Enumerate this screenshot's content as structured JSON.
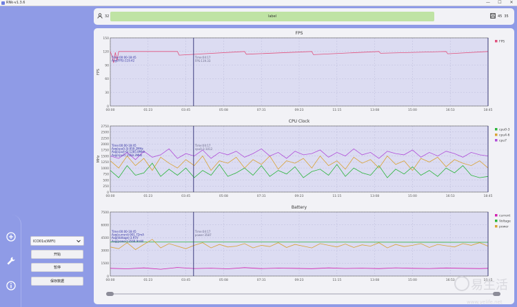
{
  "window": {
    "title": "RNk-v1.3.6",
    "minimize": "—",
    "maximize": "☐",
    "close": "✕"
  },
  "toolbar": {
    "device_count": "32",
    "status": "label",
    "right_a": "45",
    "right_b": "35"
  },
  "left_panel": {
    "device_select": "ICO01s(WIFI)",
    "buttons": {
      "start": "开始",
      "pause": "暂停",
      "save": "保存数据"
    }
  },
  "nav": {
    "icons": [
      "add-icon",
      "wrench-icon",
      "info-icon"
    ]
  },
  "colors": {
    "bg": "#8f9be6",
    "fps": "#e0507c",
    "cpu0": "#2bb53a",
    "cpu4": "#d9a233",
    "cpu7": "#b04dd9",
    "current": "#d11fb0",
    "voltage": "#2bb53a",
    "power": "#d9a233",
    "banner": "#bfe3a4"
  },
  "time_ticks": [
    "00:00",
    "01:23",
    "03:45",
    "05:08",
    "07:31",
    "09:23",
    "11:15",
    "13:08",
    "15:00",
    "16:53",
    "18:45"
  ],
  "watermark": "易生活",
  "watermark_url": "www.yelife.net",
  "chart_data": [
    {
      "type": "line",
      "title": "FPS",
      "ylabel": "FPS",
      "y_ticks": [
        "0",
        "30",
        "60",
        "90",
        "120",
        "150"
      ],
      "ylim": [
        0,
        150
      ],
      "xlim": [
        0,
        1125
      ],
      "x_tick_labels_ref": "time_ticks",
      "series": [
        {
          "name": "FPS",
          "color": "#e0507c",
          "x": [
            0,
            5,
            10,
            15,
            20,
            25,
            30,
            40,
            80,
            200,
            205,
            400,
            405,
            600,
            605,
            800,
            805,
            1000,
            1005,
            1125
          ],
          "y": [
            120,
            110,
            95,
            118,
            100,
            120,
            120,
            120,
            120,
            120,
            112,
            120,
            114,
            120,
            113,
            120,
            116,
            120,
            115,
            120
          ]
        }
      ],
      "cursors": [
        {
          "x": 248,
          "label_time": "Time:04:17",
          "label_value": "FPS:119.33"
        },
        {
          "x": 1125
        }
      ],
      "info": {
        "time": "Time:00:00-18:45",
        "avg": "Avg(FPS):119.42"
      },
      "legend": [
        "FPS"
      ],
      "legend_position": "right",
      "grid": true
    },
    {
      "type": "line",
      "title": "CPU Clock",
      "ylabel": "MHz",
      "y_ticks": [
        "0",
        "250",
        "500",
        "750",
        "1000",
        "1250",
        "1500",
        "1750",
        "2000",
        "2250",
        "2500",
        "2750"
      ],
      "ylim": [
        0,
        2750
      ],
      "xlim": [
        0,
        1125
      ],
      "x_tick_labels_ref": "time_ticks",
      "series": [
        {
          "name": "cpu0-3",
          "color": "#2bb53a",
          "x": [
            0,
            25,
            50,
            75,
            100,
            125,
            150,
            175,
            200,
            225,
            250,
            275,
            300,
            325,
            350,
            375,
            400,
            425,
            450,
            475,
            500,
            525,
            550,
            575,
            600,
            625,
            650,
            675,
            700,
            725,
            750,
            775,
            800,
            825,
            850,
            875,
            900,
            925,
            950,
            975,
            1000,
            1025,
            1050,
            1075,
            1100,
            1125
          ],
          "y": [
            900,
            600,
            1100,
            700,
            800,
            1200,
            650,
            950,
            700,
            1000,
            600,
            900,
            700,
            1150,
            650,
            800,
            1000,
            700,
            1100,
            650,
            900,
            750,
            1050,
            600,
            850,
            950,
            700,
            1150,
            650,
            1000,
            800,
            700,
            1100,
            600,
            950,
            750,
            1050,
            700,
            900,
            650,
            1000,
            800,
            1100,
            700,
            600,
            650
          ]
        },
        {
          "name": "cpu4-6",
          "color": "#d9a233",
          "x": [
            0,
            25,
            50,
            75,
            100,
            125,
            150,
            175,
            200,
            225,
            250,
            275,
            300,
            325,
            350,
            375,
            400,
            425,
            450,
            475,
            500,
            525,
            550,
            575,
            600,
            625,
            650,
            675,
            700,
            725,
            750,
            775,
            800,
            825,
            850,
            875,
            900,
            925,
            950,
            975,
            1000,
            1025,
            1050,
            1075,
            1100,
            1125
          ],
          "y": [
            1300,
            1000,
            1500,
            1100,
            1400,
            900,
            1450,
            1200,
            1000,
            1350,
            1100,
            1500,
            900,
            1300,
            1200,
            1450,
            1000,
            1350,
            1150,
            1500,
            950,
            1300,
            1200,
            1400,
            1000,
            1500,
            1100,
            1300,
            950,
            1450,
            1200,
            1350,
            1000,
            1500,
            1150,
            1300,
            900,
            1400,
            1250,
            1450,
            1050,
            1350,
            1200,
            1100,
            1300,
            1000
          ]
        },
        {
          "name": "cpu7",
          "color": "#b04dd9",
          "x": [
            0,
            25,
            50,
            75,
            100,
            125,
            150,
            175,
            200,
            225,
            250,
            275,
            300,
            325,
            350,
            375,
            400,
            425,
            450,
            475,
            500,
            525,
            550,
            575,
            600,
            625,
            650,
            675,
            700,
            725,
            750,
            775,
            800,
            825,
            850,
            875,
            900,
            925,
            950,
            975,
            1000,
            1025,
            1050,
            1075,
            1100,
            1125
          ],
          "y": [
            1500,
            1400,
            1650,
            1350,
            1700,
            1450,
            1550,
            1800,
            1400,
            1600,
            1500,
            1750,
            1400,
            1650,
            1550,
            1700,
            1450,
            1600,
            1800,
            1500,
            1650,
            1400,
            1700,
            1550,
            1600,
            1750,
            1450,
            1650,
            1500,
            1800,
            1550,
            1650,
            1400,
            1700,
            1600,
            1550,
            1750,
            1450,
            1650,
            1500,
            1700,
            1600,
            1450,
            1650,
            1550,
            1500
          ]
        }
      ],
      "cursors": [
        {
          "x": 248,
          "label_time": "Time:04:17",
          "label_value": "cpu0-3:1012"
        },
        {
          "x": 1125
        }
      ],
      "info": {
        "time": "Time:00:00-18:45",
        "lines": [
          "Avg(cpu0-3):959.2MHz",
          "Avg(cpu4-6):1285.8MHz",
          "Avg(cpu7):1558.3MHz"
        ]
      },
      "legend": [
        "cpu0-3",
        "cpu4-6",
        "cpu7"
      ],
      "legend_position": "right",
      "grid": true
    },
    {
      "type": "line",
      "title": "Battery",
      "y_ticks": [
        "0",
        "1500",
        "3000",
        "4500",
        "6000",
        "7500"
      ],
      "ylim": [
        0,
        7500
      ],
      "xlim": [
        0,
        1125
      ],
      "x_tick_labels_ref": "time_ticks",
      "series": [
        {
          "name": "current",
          "color": "#d11fb0",
          "x": [
            0,
            50,
            100,
            150,
            200,
            250,
            300,
            350,
            400,
            450,
            500,
            550,
            600,
            650,
            700,
            750,
            800,
            850,
            900,
            950,
            1000,
            1050,
            1100,
            1125
          ],
          "y": [
            900,
            850,
            950,
            800,
            1000,
            880,
            920,
            850,
            980,
            870,
            930,
            900,
            860,
            950,
            890,
            920,
            870,
            960,
            900,
            880,
            940,
            900,
            870,
            900
          ]
        },
        {
          "name": "Voltage",
          "color": "#2bb53a",
          "x": [
            0,
            1125
          ],
          "y": [
            4000,
            3950
          ]
        },
        {
          "name": "power",
          "color": "#d9a233",
          "x": [
            0,
            25,
            50,
            75,
            100,
            125,
            150,
            175,
            200,
            225,
            250,
            275,
            300,
            325,
            350,
            375,
            400,
            425,
            450,
            475,
            500,
            525,
            550,
            575,
            600,
            625,
            650,
            675,
            700,
            725,
            750,
            775,
            800,
            825,
            850,
            875,
            900,
            925,
            950,
            975,
            1000,
            1025,
            1050,
            1075,
            1100,
            1125
          ],
          "y": [
            3400,
            3200,
            3900,
            3100,
            3700,
            4300,
            3300,
            3800,
            3500,
            3200,
            3600,
            3900,
            3300,
            3700,
            3400,
            3500,
            3800,
            3300,
            3600,
            3450,
            3900,
            3350,
            3700,
            3500,
            3300,
            3800,
            3600,
            3400,
            3750,
            3350,
            3650,
            3500,
            3900,
            3300,
            3700,
            3450,
            3600,
            3800,
            3350,
            3700,
            3550,
            3400,
            3800,
            3600,
            3900,
            3500
          ]
        }
      ],
      "cursors": [
        {
          "x": 248,
          "label_time": "Time:04:17",
          "label_value": "power:3587"
        },
        {
          "x": 1125
        }
      ],
      "info": {
        "time": "Time:00:00-18:45",
        "lines": [
          "Avg(current):901.72mA",
          "Avg(Voltage):3.97V",
          "Avg(power):3568.9mW"
        ]
      },
      "legend": [
        "current",
        "Voltage",
        "power"
      ],
      "legend_position": "right",
      "grid": true
    }
  ]
}
